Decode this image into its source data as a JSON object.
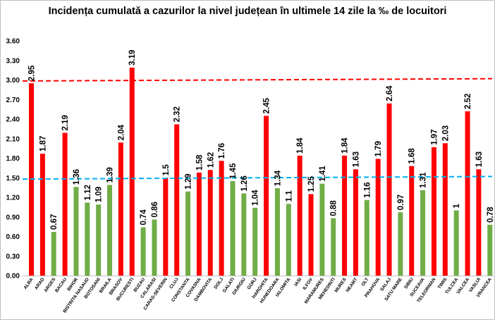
{
  "chart_data": {
    "type": "bar",
    "title": "Incidența cumulată a cazurilor la nivel județean în ultimele 14 zile la ‰ de locuitori",
    "xlabel": "",
    "ylabel": "",
    "ylim": [
      0,
      3.6
    ],
    "yticks": [
      "0.00",
      "0.30",
      "0.60",
      "0.90",
      "1.20",
      "1.50",
      "1.80",
      "2.10",
      "2.40",
      "2.70",
      "3.00",
      "3.30",
      "3.60"
    ],
    "grid": false,
    "legend": "none",
    "colors": {
      "above": "#ff0000",
      "below": "#70ad47",
      "line_high": "#ff0000",
      "line_low": "#00b0f0"
    },
    "reference_lines": [
      {
        "value": 3.0,
        "color": "#ff0000",
        "style": "dashed"
      },
      {
        "value": 1.5,
        "color": "#00b0f0",
        "style": "dashed"
      }
    ],
    "categories": [
      "ALBA",
      "ARAD",
      "ARGES",
      "BACAU",
      "BIHOR",
      "BISTRITA NASAUD",
      "BOTOSANI",
      "BRAILA",
      "BRASOV",
      "BUCURESTI",
      "BUZAU",
      "CALARASI",
      "CARAS-SEVERIN",
      "CLUJ",
      "CONSTANTA",
      "COVASNA",
      "DAMBOVITA",
      "DOLJ",
      "GALATI",
      "GIURGIU",
      "GORJ",
      "HARGHITA",
      "HUNEDOARA",
      "IALOMITA",
      "IASI",
      "ILFOV",
      "MARAMURES",
      "MEHEDINTI",
      "MURES",
      "NEAMT",
      "OLT",
      "PRAHOVA",
      "SALAJ",
      "SATU MARE",
      "SIBIU",
      "SUCEAVA",
      "TELEORMAN",
      "TIMIS",
      "TULCEA",
      "VALCEA",
      "VASLUI",
      "VRANCEA"
    ],
    "values": [
      2.95,
      1.87,
      0.67,
      2.19,
      1.36,
      1.12,
      1.09,
      1.39,
      2.04,
      3.19,
      0.74,
      0.86,
      1.5,
      2.32,
      1.29,
      1.58,
      1.62,
      1.76,
      1.45,
      1.26,
      1.04,
      2.45,
      1.34,
      1.1,
      1.84,
      1.25,
      1.41,
      0.88,
      1.84,
      1.63,
      1.16,
      1.79,
      2.64,
      0.97,
      1.68,
      1.31,
      1.97,
      2.03,
      1,
      2.52,
      1.63,
      0.78
    ],
    "data_labels": [
      "2.95",
      "1.87",
      "0.67",
      "2.19",
      "1.36",
      "1.12",
      "1.09",
      "1.39",
      "2.04",
      "3.19",
      "0.74",
      "0.86",
      "1.5",
      "2.32",
      "1.29",
      "1.58",
      "1.62",
      "1.76",
      "1.45",
      "1.26",
      "1.04",
      "2.45",
      "1.34",
      "1.1",
      "1.84",
      "1.25",
      "1.41",
      "0.88",
      "1.84",
      "1.63",
      "1.16",
      "1.79",
      "2.64",
      "0.97",
      "1.68",
      "1.31",
      "1.97",
      "2.03",
      "1",
      "2.52",
      "1.63",
      "0.78"
    ],
    "bar_colors": [
      "above",
      "above",
      "below",
      "above",
      "below",
      "below",
      "below",
      "below",
      "above",
      "above",
      "below",
      "below",
      "above",
      "above",
      "below",
      "above",
      "above",
      "above",
      "below",
      "below",
      "below",
      "above",
      "below",
      "below",
      "above",
      "above",
      "below",
      "below",
      "above",
      "above",
      "below",
      "above",
      "above",
      "below",
      "above",
      "below",
      "above",
      "above",
      "below",
      "above",
      "above",
      "below"
    ]
  }
}
